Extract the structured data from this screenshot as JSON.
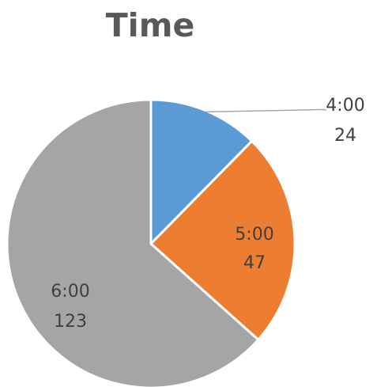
{
  "chart_data": {
    "type": "pie",
    "title": "Time",
    "categories": [
      "4:00",
      "5:00",
      "6:00"
    ],
    "values": [
      24,
      47,
      123
    ],
    "colors": [
      "#5B9BD5",
      "#ED7D31",
      "#A5A5A5"
    ],
    "data_labels": [
      {
        "name": "4:00",
        "value": "24"
      },
      {
        "name": "5:00",
        "value": "47"
      },
      {
        "name": "6:00",
        "value": "123"
      }
    ],
    "legend": "none"
  }
}
